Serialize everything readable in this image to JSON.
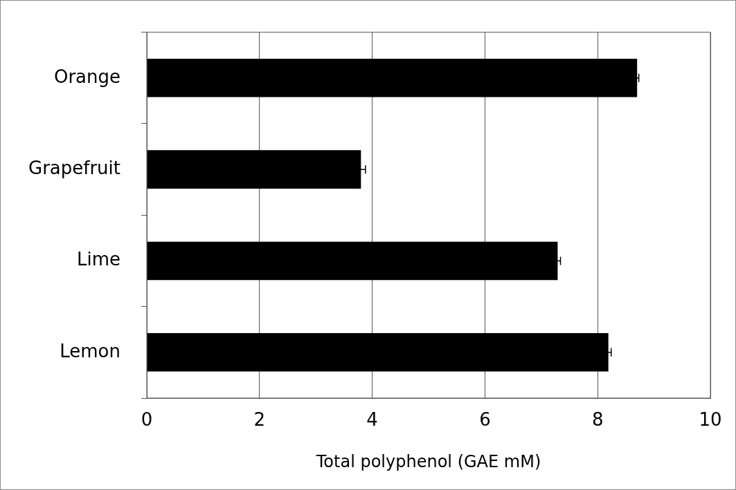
{
  "chart_data": {
    "type": "bar",
    "orientation": "horizontal",
    "xlabel": "Total polyphenol (GAE mM)",
    "categories": [
      "Orange",
      "Grapefruit",
      "Lime",
      "Lemon"
    ],
    "values": [
      8.7,
      3.8,
      7.29,
      8.19
    ],
    "errors": [
      0.03,
      0.08,
      0.05,
      0.05
    ],
    "color": "#000000",
    "xlim": [
      0,
      10
    ],
    "xticks": [
      0,
      2,
      4,
      6,
      8,
      10
    ],
    "grid": "x",
    "legend": false
  }
}
